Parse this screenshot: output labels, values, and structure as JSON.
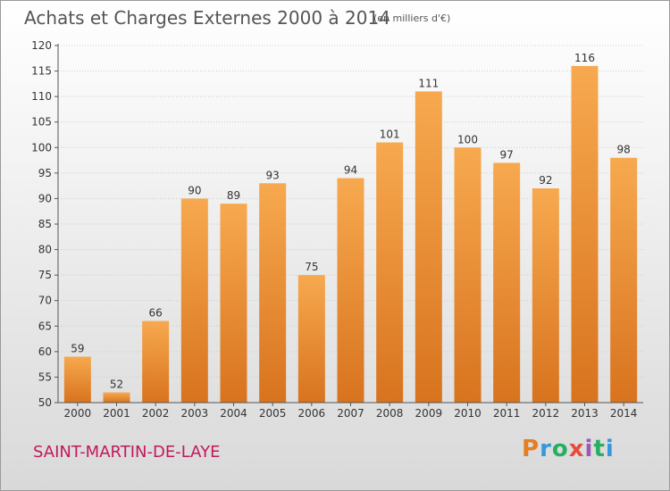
{
  "header": {
    "title": "Achats et Charges Externes 2000 à 2014",
    "subtitle": "(en milliers d'€)"
  },
  "footer": {
    "place": "SAINT-MARTIN-DE-LAYE",
    "logo": "Proxiti"
  },
  "colors": {
    "bar_top": "#f7a94f",
    "bar_bottom": "#d8731e",
    "axis": "#555555",
    "grid": "#cccccc",
    "place_text": "#c2185b"
  },
  "chart_data": {
    "type": "bar",
    "categories": [
      "2000",
      "2001",
      "2002",
      "2003",
      "2004",
      "2005",
      "2006",
      "2007",
      "2008",
      "2009",
      "2010",
      "2011",
      "2012",
      "2013",
      "2014"
    ],
    "values": [
      59,
      52,
      66,
      90,
      89,
      93,
      75,
      94,
      101,
      111,
      100,
      97,
      92,
      116,
      98
    ],
    "ylim": [
      50,
      120
    ],
    "yticks": [
      50,
      55,
      60,
      65,
      70,
      75,
      80,
      85,
      90,
      95,
      100,
      105,
      110,
      115,
      120
    ],
    "grid": true
  }
}
